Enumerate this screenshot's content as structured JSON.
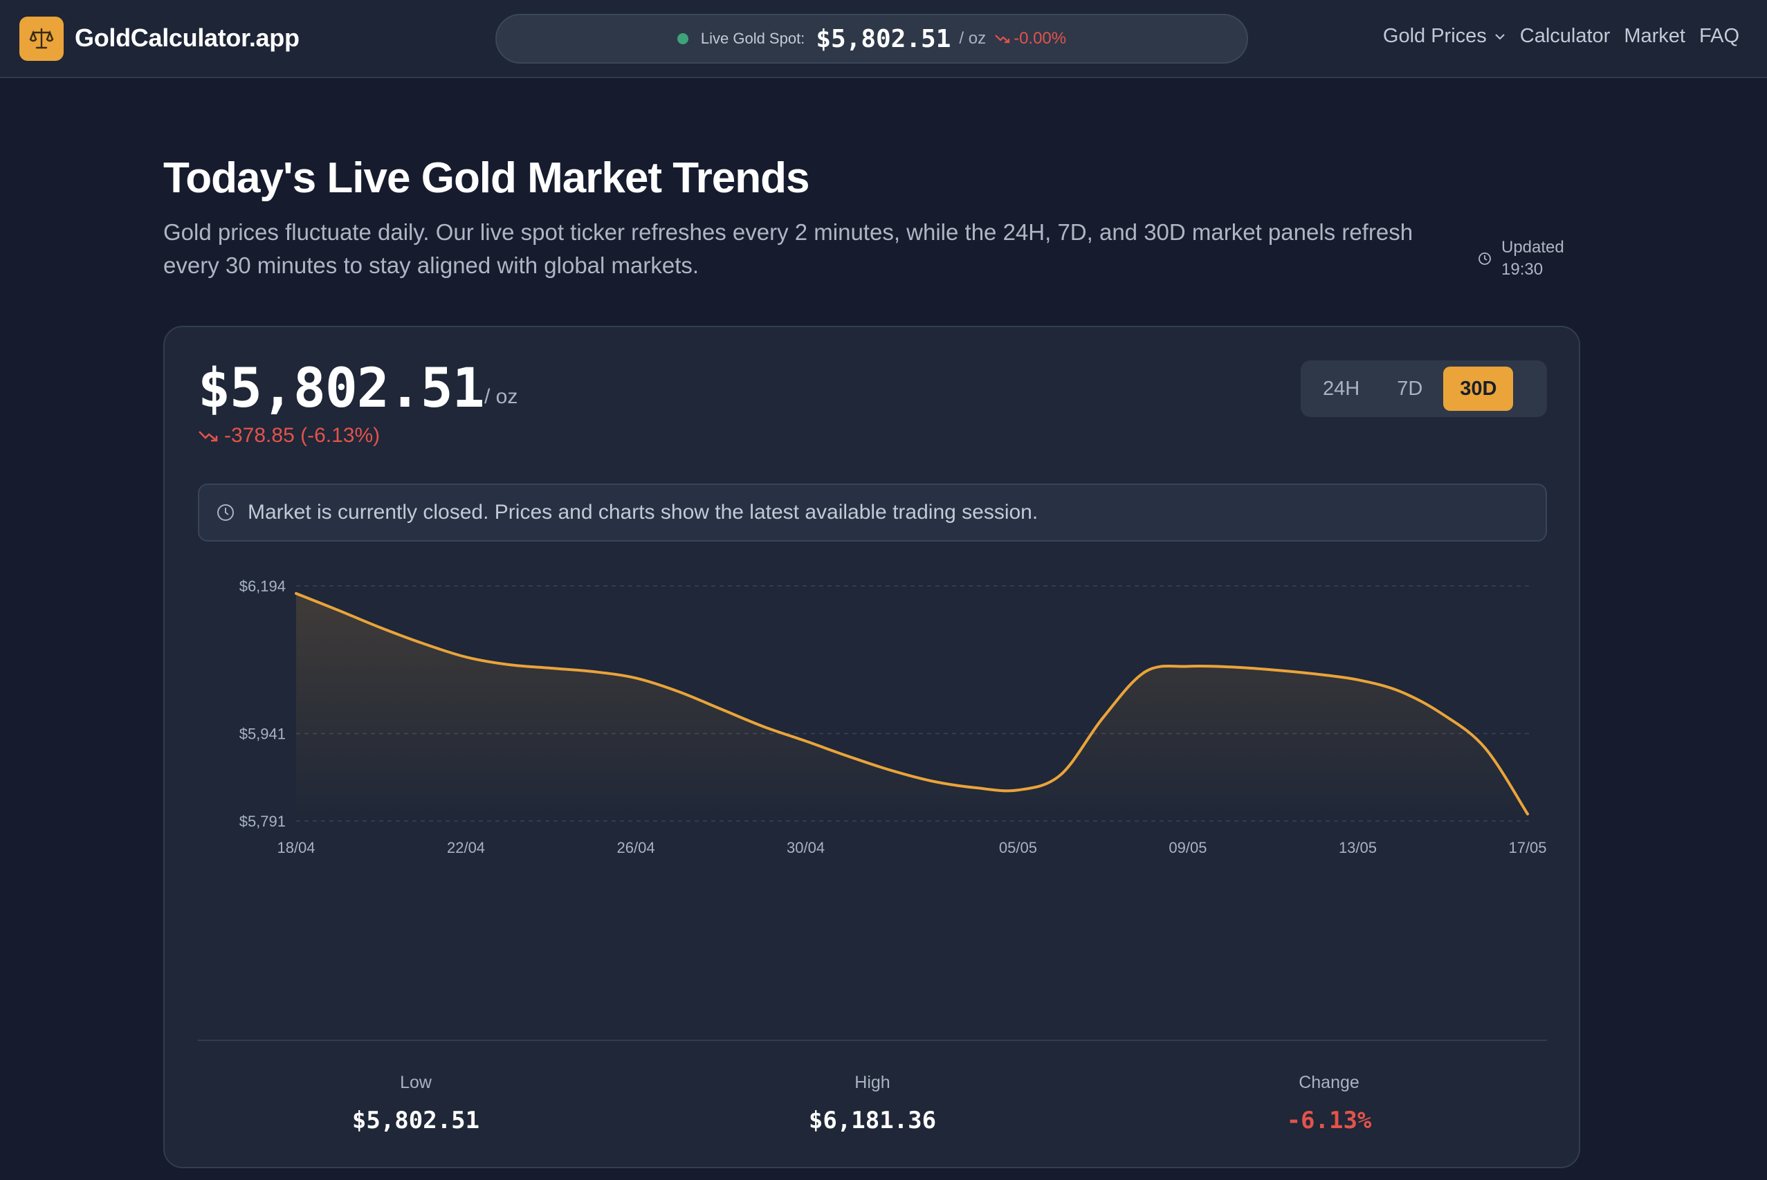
{
  "header": {
    "brand": "GoldCalculator.app",
    "ticker": {
      "label": "Live Gold Spot:",
      "price": "$5,802.51",
      "unit": "/ oz",
      "change": "-0.00%"
    },
    "nav": [
      "Gold Prices",
      "Calculator",
      "Market",
      "FAQ"
    ]
  },
  "hero": {
    "title": "Today's Live Gold Market Trends",
    "subtitle": "Gold prices fluctuate daily. Our live spot ticker refreshes every 2 minutes, while the 24H, 7D, and 30D market panels refresh every 30 minutes to stay aligned with global markets.",
    "updated_label": "Updated",
    "updated_time": "19:30"
  },
  "card": {
    "price": "$5,802.51",
    "unit": "/ oz",
    "change": "-378.85 (-6.13%)",
    "ranges": [
      "24H",
      "7D",
      "30D"
    ],
    "active_range": "30D",
    "notice": "Market is currently closed. Prices and charts show the latest available trading session.",
    "stats": [
      {
        "label": "Low",
        "value": "$5,802.51",
        "negative": false
      },
      {
        "label": "High",
        "value": "$6,181.36",
        "negative": false
      },
      {
        "label": "Change",
        "value": "-6.13%",
        "negative": true
      }
    ]
  },
  "colors": {
    "accent": "#eaa43a",
    "negative": "#e3534b",
    "positive_dot": "#3fa37a"
  },
  "chart_data": {
    "type": "area",
    "x": [
      "18/04",
      "19/04",
      "20/04",
      "21/04",
      "22/04",
      "23/04",
      "24/04",
      "25/04",
      "26/04",
      "27/04",
      "28/04",
      "29/04",
      "30/04",
      "01/05",
      "02/05",
      "03/05",
      "04/05",
      "05/05",
      "06/05",
      "07/05",
      "08/05",
      "09/05",
      "10/05",
      "11/05",
      "12/05",
      "13/05",
      "14/05",
      "15/05",
      "16/05",
      "17/05"
    ],
    "x_ticks": [
      "18/04",
      "22/04",
      "26/04",
      "30/04",
      "05/05",
      "09/05",
      "13/05",
      "17/05"
    ],
    "values": [
      6181,
      6152,
      6122,
      6095,
      6072,
      6059,
      6053,
      6047,
      6036,
      6013,
      5983,
      5953,
      5928,
      5902,
      5878,
      5859,
      5848,
      5844,
      5870,
      5968,
      6047,
      6056,
      6055,
      6050,
      6043,
      6033,
      6013,
      5974,
      5916,
      5803
    ],
    "y_ticks": [
      "$6,194",
      "$5,941",
      "$5,791"
    ],
    "ylim": [
      5791,
      6194
    ],
    "y_tick_values": [
      6194,
      5941,
      5791
    ],
    "grid": true
  }
}
